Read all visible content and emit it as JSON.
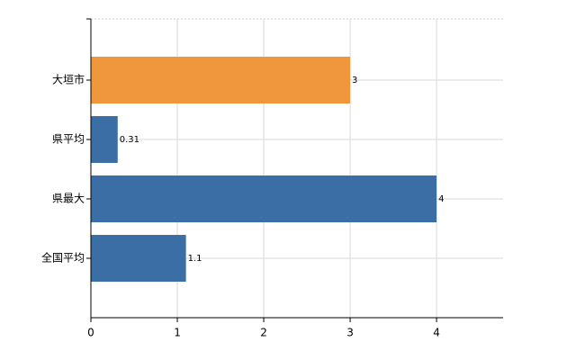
{
  "chart_data": {
    "type": "hbar",
    "categories": [
      "大垣市",
      "県平均",
      "県最大",
      "全国平均"
    ],
    "values": [
      3,
      0.31,
      4,
      1.1
    ],
    "colors": [
      "#f0963c",
      "#3a6ea5",
      "#3a6ea5",
      "#3a6ea5"
    ],
    "xlim": [
      0,
      4.77
    ],
    "xticks": [
      0,
      1,
      2,
      3,
      4
    ],
    "grid": true
  }
}
